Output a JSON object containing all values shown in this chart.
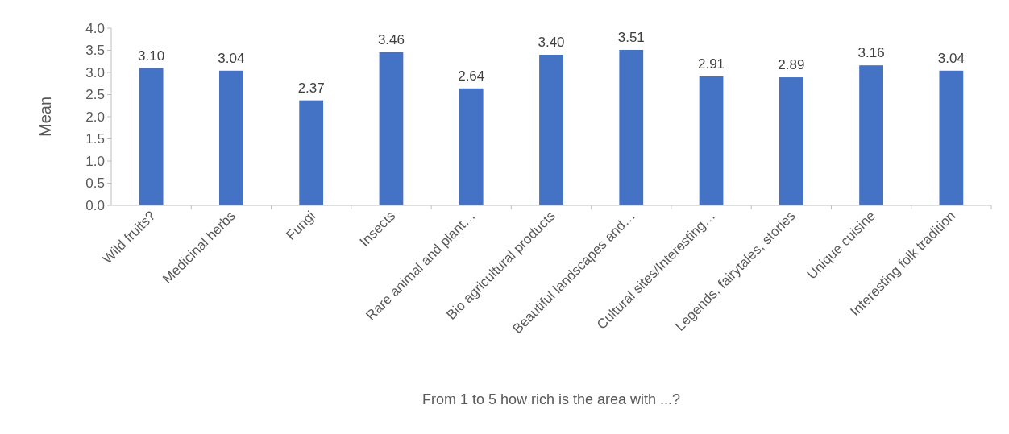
{
  "chart_data": {
    "type": "bar",
    "xlabel": "From 1 to 5 how rich is the area with ...?",
    "ylabel": "Mean",
    "categories": [
      "Wild fruits?",
      "Medicinal herbs",
      "Fungi",
      "Insects",
      "Rare animal and plant…",
      "Bio agricultural products",
      "Beautiful landscapes and…",
      "Cultural sites/Interesting…",
      "Legends, fairytales, stories",
      "Unique cuisine",
      "Interesting folk tradition"
    ],
    "values": [
      3.1,
      3.04,
      2.37,
      3.46,
      2.64,
      3.4,
      3.51,
      2.91,
      2.89,
      3.16,
      3.04
    ],
    "value_labels": [
      "3.10",
      "3.04",
      "2.37",
      "3.46",
      "2.64",
      "3.40",
      "3.51",
      "2.91",
      "2.89",
      "3.16",
      "3.04"
    ],
    "color": "#4472c4",
    "ylim": [
      0,
      4
    ],
    "yticks": [
      {
        "value": 0,
        "label": "0.0"
      },
      {
        "value": 0.5,
        "label": "0.5"
      },
      {
        "value": 1,
        "label": "1.0"
      },
      {
        "value": 1.5,
        "label": "1.5"
      },
      {
        "value": 2,
        "label": "2.0"
      },
      {
        "value": 2.5,
        "label": "2.5"
      },
      {
        "value": 3,
        "label": "3.0"
      },
      {
        "value": 3.5,
        "label": "3.5"
      },
      {
        "value": 4,
        "label": "4.0"
      }
    ],
    "grid": false
  }
}
